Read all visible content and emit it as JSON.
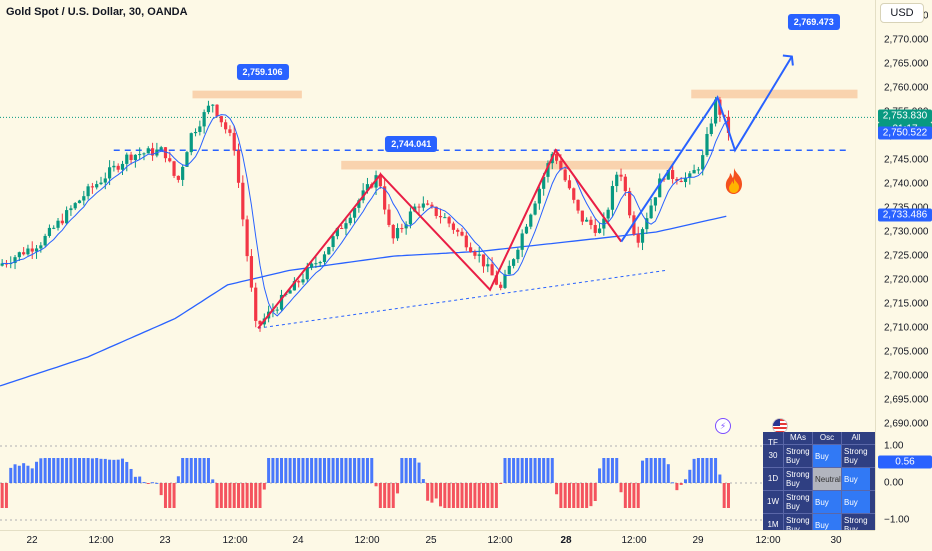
{
  "header": {
    "title": "Gold Spot / U.S. Dollar, 30, OANDA",
    "currency": "USD"
  },
  "chart_data": {
    "type": "candlestick",
    "symbol": "XAUUSD",
    "timeframe": "30",
    "ylim": [
      2688,
      2777
    ],
    "y_ticks": [
      2690,
      2695,
      2700,
      2705,
      2710,
      2715,
      2720,
      2725,
      2730,
      2735,
      2740,
      2745,
      2750,
      2755,
      2760,
      2765,
      2770,
      2775
    ],
    "y_tick_labels": [
      "2,690.000",
      "2,695.000",
      "2,700.000",
      "2,705.000",
      "2,710.000",
      "2,715.000",
      "2,720.000",
      "2,725.000",
      "2,730.000",
      "2,735.000",
      "2,740.000",
      "2,745.000",
      "2,750.000",
      "2,755.000",
      "2,760.000",
      "2,765.000",
      "2,770.000",
      "2,775.000"
    ],
    "x_labels": [
      "22",
      "12:00",
      "23",
      "12:00",
      "24",
      "12:00",
      "25",
      "12:00",
      "28",
      "12:00",
      "29",
      "12:00",
      "30"
    ],
    "x_labels_bold": [
      false,
      false,
      false,
      false,
      false,
      false,
      false,
      false,
      true,
      false,
      false,
      false,
      false
    ],
    "current_price": "2,753.830",
    "countdown": "21:17",
    "price_labels": [
      {
        "value": "2,750.522",
        "price": 2750.522,
        "color": "#2962ff"
      },
      {
        "value": "2,733.486",
        "price": 2733.486,
        "color": "#2962ff"
      }
    ],
    "callouts": [
      {
        "text": "2,759.106",
        "price": 2759.106,
        "t": 0.3
      },
      {
        "text": "2,744.041",
        "price": 2744.041,
        "t": 0.47
      },
      {
        "text": "2,769.473",
        "price": 2769.473,
        "t": 0.93
      }
    ],
    "key_points": [
      {
        "t": 0.0,
        "price": 2723
      },
      {
        "t": 0.05,
        "price": 2728
      },
      {
        "t": 0.1,
        "price": 2738
      },
      {
        "t": 0.15,
        "price": 2746
      },
      {
        "t": 0.19,
        "price": 2747
      },
      {
        "t": 0.205,
        "price": 2740
      },
      {
        "t": 0.22,
        "price": 2750
      },
      {
        "t": 0.245,
        "price": 2757
      },
      {
        "t": 0.27,
        "price": 2748
      },
      {
        "t": 0.285,
        "price": 2725
      },
      {
        "t": 0.295,
        "price": 2710
      },
      {
        "t": 0.33,
        "price": 2717
      },
      {
        "t": 0.37,
        "price": 2725
      },
      {
        "t": 0.41,
        "price": 2736
      },
      {
        "t": 0.435,
        "price": 2742
      },
      {
        "t": 0.45,
        "price": 2728
      },
      {
        "t": 0.48,
        "price": 2736
      },
      {
        "t": 0.51,
        "price": 2733
      },
      {
        "t": 0.55,
        "price": 2725
      },
      {
        "t": 0.575,
        "price": 2718
      },
      {
        "t": 0.6,
        "price": 2730
      },
      {
        "t": 0.635,
        "price": 2747
      },
      {
        "t": 0.665,
        "price": 2733
      },
      {
        "t": 0.69,
        "price": 2730
      },
      {
        "t": 0.71,
        "price": 2744
      },
      {
        "t": 0.73,
        "price": 2728
      },
      {
        "t": 0.76,
        "price": 2742
      },
      {
        "t": 0.79,
        "price": 2741
      },
      {
        "t": 0.805,
        "price": 2745
      },
      {
        "t": 0.82,
        "price": 2757
      },
      {
        "t": 0.835,
        "price": 2751
      }
    ],
    "ma_slow": [
      {
        "t": 0.0,
        "price": 2698
      },
      {
        "t": 0.1,
        "price": 2704
      },
      {
        "t": 0.2,
        "price": 2712
      },
      {
        "t": 0.26,
        "price": 2719
      },
      {
        "t": 0.33,
        "price": 2722
      },
      {
        "t": 0.45,
        "price": 2725
      },
      {
        "t": 0.55,
        "price": 2726
      },
      {
        "t": 0.65,
        "price": 2728
      },
      {
        "t": 0.75,
        "price": 2730
      },
      {
        "t": 0.835,
        "price": 2733.5
      }
    ],
    "supply_zones": [
      {
        "t0": 0.22,
        "t1": 0.345,
        "p0": 2757.8,
        "p1": 2759.4
      },
      {
        "t0": 0.39,
        "t1": 0.77,
        "p0": 2743.0,
        "p1": 2744.8
      },
      {
        "t0": 0.79,
        "t1": 0.98,
        "p0": 2757.8,
        "p1": 2759.6
      }
    ],
    "neckline": {
      "t0": 0.13,
      "t1": 0.97,
      "price": 2747.0
    },
    "trendline": [
      {
        "t": 0.295,
        "price": 2710
      },
      {
        "t": 0.76,
        "price": 2722
      }
    ],
    "red_pattern": [
      {
        "t": 0.295,
        "price": 2710
      },
      {
        "t": 0.435,
        "price": 2742
      },
      {
        "t": 0.56,
        "price": 2718
      },
      {
        "t": 0.635,
        "price": 2747
      },
      {
        "t": 0.71,
        "price": 2728
      }
    ],
    "blue_projection": [
      {
        "t": 0.71,
        "price": 2728
      },
      {
        "t": 0.82,
        "price": 2758
      },
      {
        "t": 0.84,
        "price": 2747
      },
      {
        "t": 0.905,
        "price": 2766.5
      }
    ]
  },
  "oscillator": {
    "level_high": "1.00",
    "level_mid": "0.00",
    "level_low": "−1.00",
    "value": "0.56",
    "value_color": "#2962ff"
  },
  "technicals": {
    "headers": [
      "TF",
      "MAs",
      "Osc",
      "All"
    ],
    "rows": [
      {
        "tf": "30",
        "mas": "Strong Buy",
        "osc": "Buy",
        "all": "Strong Buy"
      },
      {
        "tf": "1D",
        "mas": "Strong Buy",
        "osc": "Neutral",
        "all": "Buy"
      },
      {
        "tf": "1W",
        "mas": "Strong Buy",
        "osc": "Buy",
        "all": "Buy"
      },
      {
        "tf": "1M",
        "mas": "Strong Buy",
        "osc": "Buy",
        "all": "Strong Buy"
      }
    ]
  },
  "colors": {
    "up": "#089981",
    "down": "#f23645",
    "osc_up": "#2962ff",
    "osc_down": "#f23645",
    "zone": "#f7c9a0",
    "line": "#2962ff",
    "pattern": "#e91e45"
  }
}
